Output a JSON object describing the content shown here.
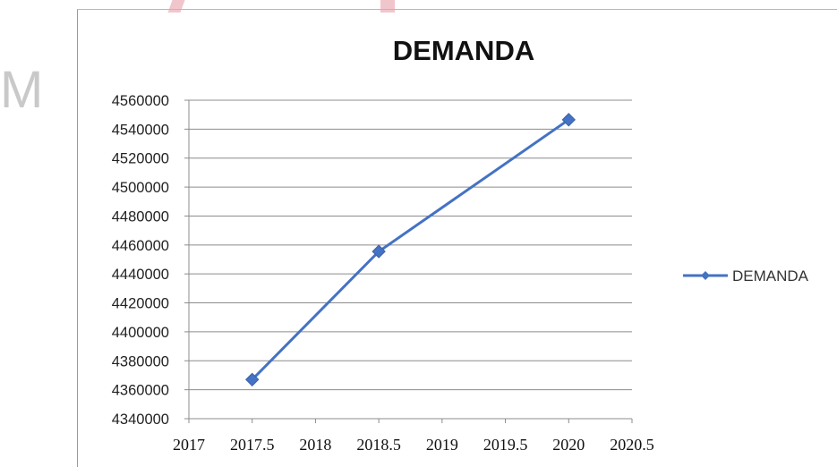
{
  "background_letter": "M",
  "chart_data": {
    "type": "line",
    "title": "DEMANDA",
    "xlabel": "",
    "ylabel": "",
    "x": [
      2017.5,
      2018.5,
      2020
    ],
    "series": [
      {
        "name": "DEMANDA",
        "values": [
          4367000,
          4455500,
          4546500
        ],
        "color": "#4472C4",
        "marker": "diamond"
      }
    ],
    "xlim": [
      2017,
      2020.5
    ],
    "ylim": [
      4340000,
      4560000
    ],
    "x_ticks": [
      "2017",
      "2017.5",
      "2018",
      "2018.5",
      "2019",
      "2019.5",
      "2020",
      "2020.5"
    ],
    "y_ticks": [
      "4340000",
      "4360000",
      "4380000",
      "4400000",
      "4420000",
      "4440000",
      "4460000",
      "4480000",
      "4500000",
      "4520000",
      "4540000",
      "4560000"
    ],
    "grid": true,
    "legend_position": "right"
  }
}
